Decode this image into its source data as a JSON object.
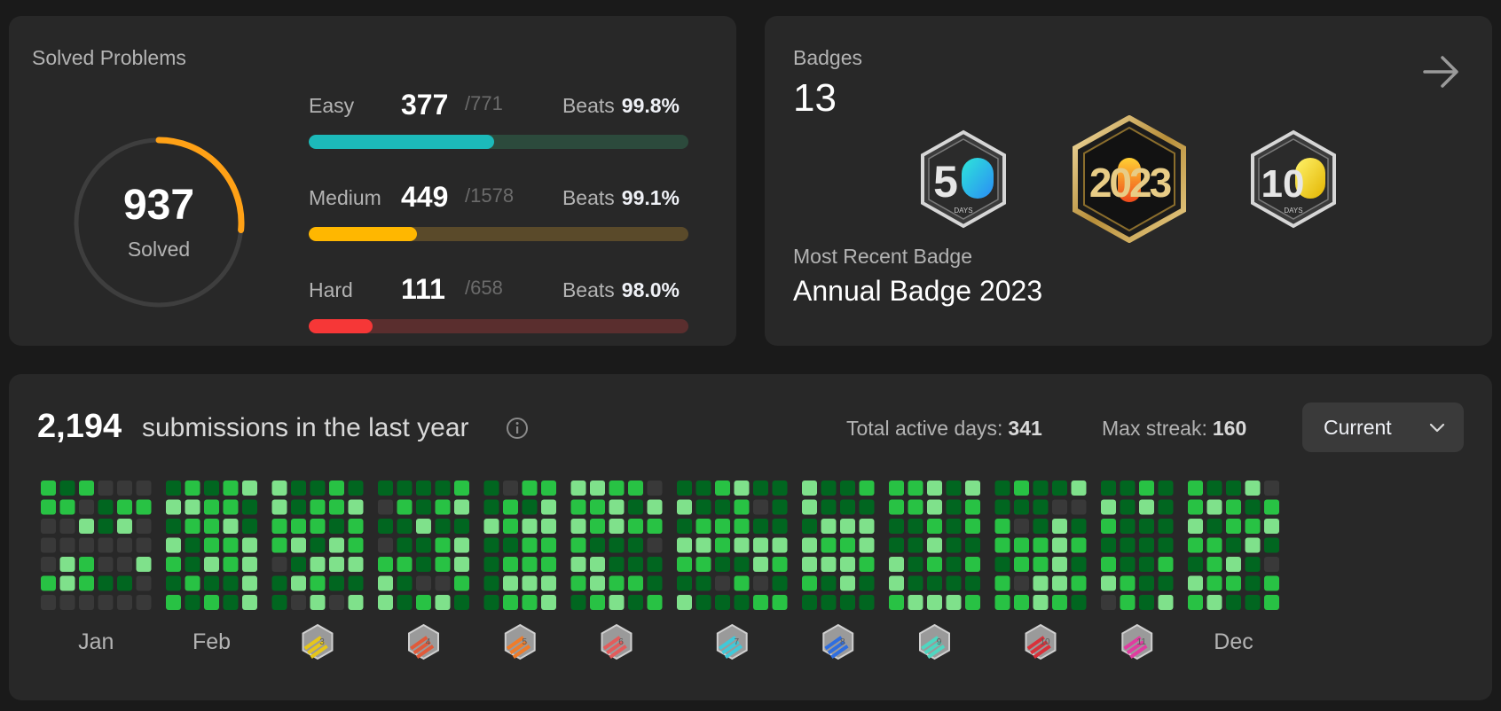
{
  "solved": {
    "title": "Solved Problems",
    "total": "937",
    "total_label": "Solved",
    "progress_fraction": 0.2645,
    "accent": "#ffa116",
    "difficulties": [
      {
        "label": "Easy",
        "count": "377",
        "total": "/771",
        "beats_label": "Beats",
        "beats": "99.8%",
        "fraction": 0.489,
        "color": "#1cbaba",
        "track": "#2c4a3c"
      },
      {
        "label": "Medium",
        "count": "449",
        "total": "/1578",
        "beats_label": "Beats",
        "beats": "99.1%",
        "fraction": 0.285,
        "color": "#ffb700",
        "track": "#5a4a2a"
      },
      {
        "label": "Hard",
        "count": "111",
        "total": "/658",
        "beats_label": "Beats",
        "beats": "98.0%",
        "fraction": 0.169,
        "color": "#f63737",
        "track": "#5a2e2e"
      }
    ]
  },
  "badges": {
    "title": "Badges",
    "count": "13",
    "items": [
      {
        "name": "50-days-badge-icon",
        "text": "5",
        "sub": "DAYS"
      },
      {
        "name": "annual-2023-badge-icon",
        "text": "2023"
      },
      {
        "name": "100-days-badge-icon",
        "text": "10",
        "sub": "DAYS"
      }
    ],
    "recent_label": "Most Recent Badge",
    "recent_name": "Annual Badge 2023"
  },
  "heatmap": {
    "count": "2,194",
    "text": "submissions in the last year",
    "active_label": "Total active days:",
    "active_value": "341",
    "streak_label": "Max streak:",
    "streak_value": "160",
    "dropdown": "Current",
    "months": [
      {
        "label": "Jan",
        "type": "text"
      },
      {
        "label": "Feb",
        "type": "text"
      },
      {
        "label": "3",
        "type": "badge",
        "color": "#e6c619"
      },
      {
        "label": "4",
        "type": "badge",
        "color": "#e05a3a"
      },
      {
        "label": "5",
        "type": "badge",
        "color": "#ef7c2a"
      },
      {
        "label": "6",
        "type": "badge",
        "color": "#e35c5c"
      },
      {
        "label": "7",
        "type": "badge",
        "color": "#3fc9d9"
      },
      {
        "label": "8",
        "type": "badge",
        "color": "#2f6ee0"
      },
      {
        "label": "9",
        "type": "badge",
        "color": "#4fd6c0"
      },
      {
        "label": "10",
        "type": "badge",
        "color": "#d9313a"
      },
      {
        "label": "11",
        "type": "badge",
        "color": "#e03ca0"
      },
      {
        "label": "Dec",
        "type": "text"
      }
    ],
    "colors": {
      "empty": "#393939",
      "level1": "#016620",
      "level2": "#28c244",
      "level3": "#7fe18b"
    }
  }
}
